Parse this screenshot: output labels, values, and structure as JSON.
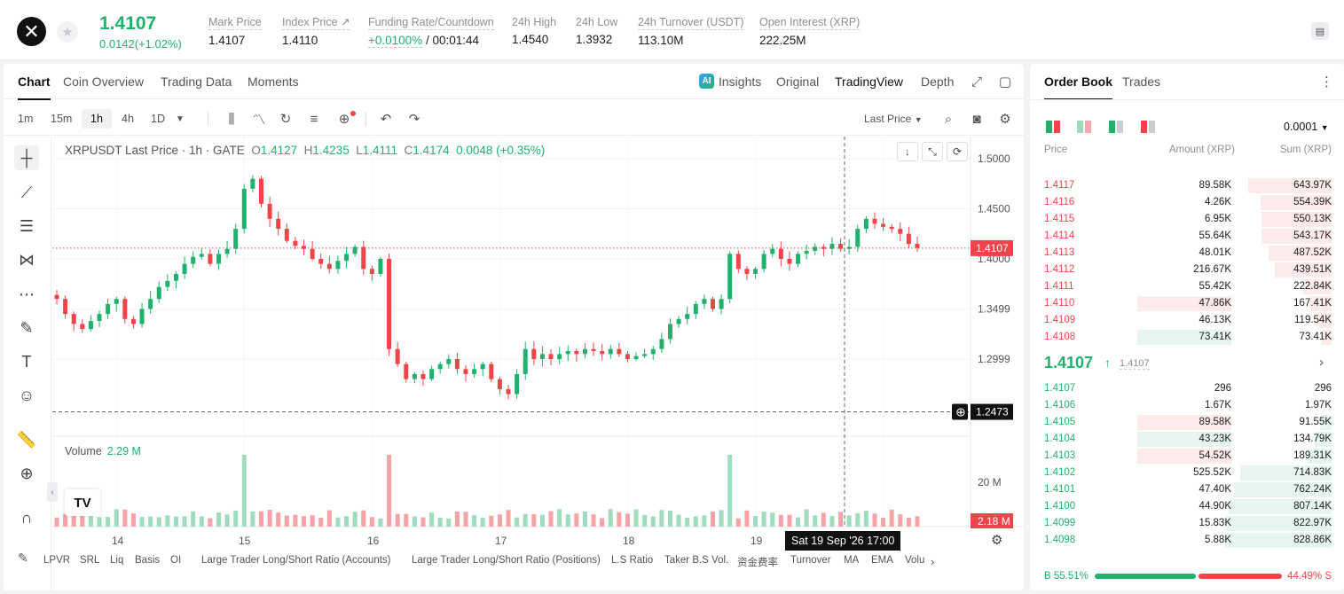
{
  "header": {
    "logo_glyph": "✕",
    "star_glyph": "★",
    "last_price": "1.4107",
    "change": "0.0142(+1.02%)",
    "stats": [
      {
        "label": "Mark Price",
        "value": "1.4107"
      },
      {
        "label": "Index Price ↗",
        "value": "1.4110"
      },
      {
        "label": "Funding Rate/Countdown",
        "value_green": "+0.0100%",
        "value": " / 00:01:44"
      },
      {
        "label": "24h High",
        "value": "1.4540"
      },
      {
        "label": "24h Low",
        "value": "1.3932"
      },
      {
        "label": "24h Turnover (USDT)",
        "value": "113.10M"
      },
      {
        "label": "Open Interest (XRP)",
        "value": "222.25M"
      }
    ]
  },
  "chart_tabs": [
    "Chart",
    "Coin Overview",
    "Trading Data",
    "Moments"
  ],
  "view_tabs": {
    "insights_badge": "AI",
    "insights": "Insights",
    "original": "Original",
    "tradingview": "TradingView",
    "depth": "Depth"
  },
  "toolbar": {
    "timeframes": [
      "1m",
      "15m",
      "1h",
      "4h",
      "1D"
    ],
    "active_timeframe": "1h",
    "price_type": "Last Price"
  },
  "legend": {
    "symbol": "XRPUSDT Last Price · 1h · GATE",
    "o_label": "O",
    "o": "1.4127",
    "h_label": "H",
    "h": "1.4235",
    "l_label": "L",
    "l": "1.4111",
    "c_label": "C",
    "c": "1.4174",
    "change": "0.0048 (+0.35%)"
  },
  "volume": {
    "label": "Volume",
    "value": "2.29 M",
    "last_label": "2.18 M",
    "axis_label": "20 M"
  },
  "tv_logo": "TV",
  "crosshair": {
    "time": "Sat 19 Sep '26   17:00",
    "price": "1.2473"
  },
  "indicators": [
    "LPVR",
    "SRL",
    "Liq",
    "Basis",
    "OI",
    "Large Trader Long/Short Ratio (Accounts)",
    "Large Trader Long/Short Ratio (Positions)",
    "L.S Ratio",
    "Taker B.S Vol.",
    "资金费率",
    "Turnover",
    "MA",
    "EMA",
    "Volu"
  ],
  "chart_data": {
    "type": "candlestick",
    "title": "XRPUSDT Last Price · 1h · GATE",
    "price_axis": [
      1.5,
      1.45,
      1.4,
      1.3499,
      1.2999
    ],
    "price_axis_labels": [
      "1.5000",
      "1.4500",
      "1.4000",
      "1.3499",
      "1.2999"
    ],
    "current_price": 1.4107,
    "current_price_label": "1.4107",
    "time_labels": [
      "14",
      "15",
      "16",
      "17",
      "18",
      "19"
    ],
    "close_path": [
      1.36,
      1.345,
      1.335,
      1.33,
      1.338,
      1.345,
      1.355,
      1.36,
      1.34,
      1.335,
      1.35,
      1.36,
      1.372,
      1.378,
      1.385,
      1.395,
      1.402,
      1.405,
      1.395,
      1.405,
      1.41,
      1.43,
      1.47,
      1.48,
      1.455,
      1.44,
      1.43,
      1.418,
      1.413,
      1.41,
      1.4,
      1.395,
      1.39,
      1.398,
      1.405,
      1.412,
      1.39,
      1.385,
      1.4,
      1.31,
      1.295,
      1.28,
      1.285,
      1.28,
      1.29,
      1.295,
      1.3,
      1.29,
      1.285,
      1.29,
      1.295,
      1.28,
      1.27,
      1.265,
      1.285,
      1.31,
      1.3,
      1.305,
      1.3,
      1.305,
      1.308,
      1.305,
      1.31,
      1.308,
      1.305,
      1.31,
      1.305,
      1.3,
      1.303,
      1.305,
      1.31,
      1.32,
      1.335,
      1.34,
      1.345,
      1.355,
      1.36,
      1.35,
      1.36,
      1.405,
      1.39,
      1.385,
      1.39,
      1.405,
      1.41,
      1.4,
      1.395,
      1.405,
      1.408,
      1.412,
      1.41,
      1.415,
      1.41,
      1.412,
      1.43,
      1.44,
      1.435,
      1.432,
      1.43,
      1.425,
      1.415,
      1.411
    ],
    "volume_note": "volume bars below price pane"
  },
  "orderbook": {
    "tabs": [
      "Order Book",
      "Trades"
    ],
    "precision": "0.0001",
    "headers": {
      "price": "Price",
      "amount": "Amount (XRP)",
      "sum": "Sum (XRP)"
    },
    "asks": [
      {
        "price": "1.4117",
        "amount": "89.58K",
        "sum": "643.97K",
        "sum_frac": 0.78,
        "amt_frac": 0
      },
      {
        "price": "1.4116",
        "amount": "4.26K",
        "sum": "554.39K",
        "sum_frac": 0.67,
        "amt_frac": 0
      },
      {
        "price": "1.4115",
        "amount": "6.95K",
        "sum": "550.13K",
        "sum_frac": 0.66,
        "amt_frac": 0
      },
      {
        "price": "1.4114",
        "amount": "55.64K",
        "sum": "543.17K",
        "sum_frac": 0.66,
        "amt_frac": 0
      },
      {
        "price": "1.4113",
        "amount": "48.01K",
        "sum": "487.52K",
        "sum_frac": 0.59,
        "amt_frac": 0
      },
      {
        "price": "1.4112",
        "amount": "216.67K",
        "sum": "439.51K",
        "sum_frac": 0.53,
        "amt_frac": 0
      },
      {
        "price": "1.4111",
        "amount": "55.42K",
        "sum": "222.84K",
        "sum_frac": 0.27,
        "amt_frac": 0
      },
      {
        "price": "1.4110",
        "amount": "47.86K",
        "sum": "167.41K",
        "sum_frac": 0.2,
        "amt_frac": 0.38
      },
      {
        "price": "1.4109",
        "amount": "46.13K",
        "sum": "119.54K",
        "sum_frac": 0.14,
        "amt_frac": 0
      },
      {
        "price": "1.4108",
        "amount": "73.41K",
        "sum": "73.41K",
        "sum_frac": 0.09,
        "amt_frac": 0.38,
        "amt_green": true
      }
    ],
    "mid": {
      "price": "1.4107",
      "arrow": "↑",
      "mark": "1.4107",
      "chevron": "›"
    },
    "bids": [
      {
        "price": "1.4107",
        "amount": "296",
        "sum": "296",
        "sum_frac": 0,
        "amt_frac": 0
      },
      {
        "price": "1.4106",
        "amount": "1.67K",
        "sum": "1.97K",
        "sum_frac": 0,
        "amt_frac": 0
      },
      {
        "price": "1.4105",
        "amount": "89.58K",
        "sum": "91.55K",
        "sum_frac": 0.11,
        "amt_frac": 0.38,
        "amt_red": true
      },
      {
        "price": "1.4104",
        "amount": "43.23K",
        "sum": "134.79K",
        "sum_frac": 0.16,
        "amt_frac": 0.38
      },
      {
        "price": "1.4103",
        "amount": "54.52K",
        "sum": "189.31K",
        "sum_frac": 0.23,
        "amt_frac": 0.38,
        "amt_red": true
      },
      {
        "price": "1.4102",
        "amount": "525.52K",
        "sum": "714.83K",
        "sum_frac": 0.86,
        "amt_frac": 0
      },
      {
        "price": "1.4101",
        "amount": "47.40K",
        "sum": "762.24K",
        "sum_frac": 0.92,
        "amt_frac": 0
      },
      {
        "price": "1.4100",
        "amount": "44.90K",
        "sum": "807.14K",
        "sum_frac": 0.97,
        "amt_frac": 0
      },
      {
        "price": "1.4099",
        "amount": "15.83K",
        "sum": "822.97K",
        "sum_frac": 0.99,
        "amt_frac": 0
      },
      {
        "price": "1.4098",
        "amount": "5.88K",
        "sum": "828.86K",
        "sum_frac": 1.0,
        "amt_frac": 0
      }
    ],
    "buy_ratio": "55.51%",
    "sell_ratio": "44.49%",
    "buy_frac": 0.5551,
    "buy_prefix": "B",
    "sell_suffix": "S"
  },
  "colors": {
    "up": "#20b26c",
    "down": "#ef454a",
    "up_bg": "#e6f6ee",
    "down_bg": "#fdeaeb"
  }
}
